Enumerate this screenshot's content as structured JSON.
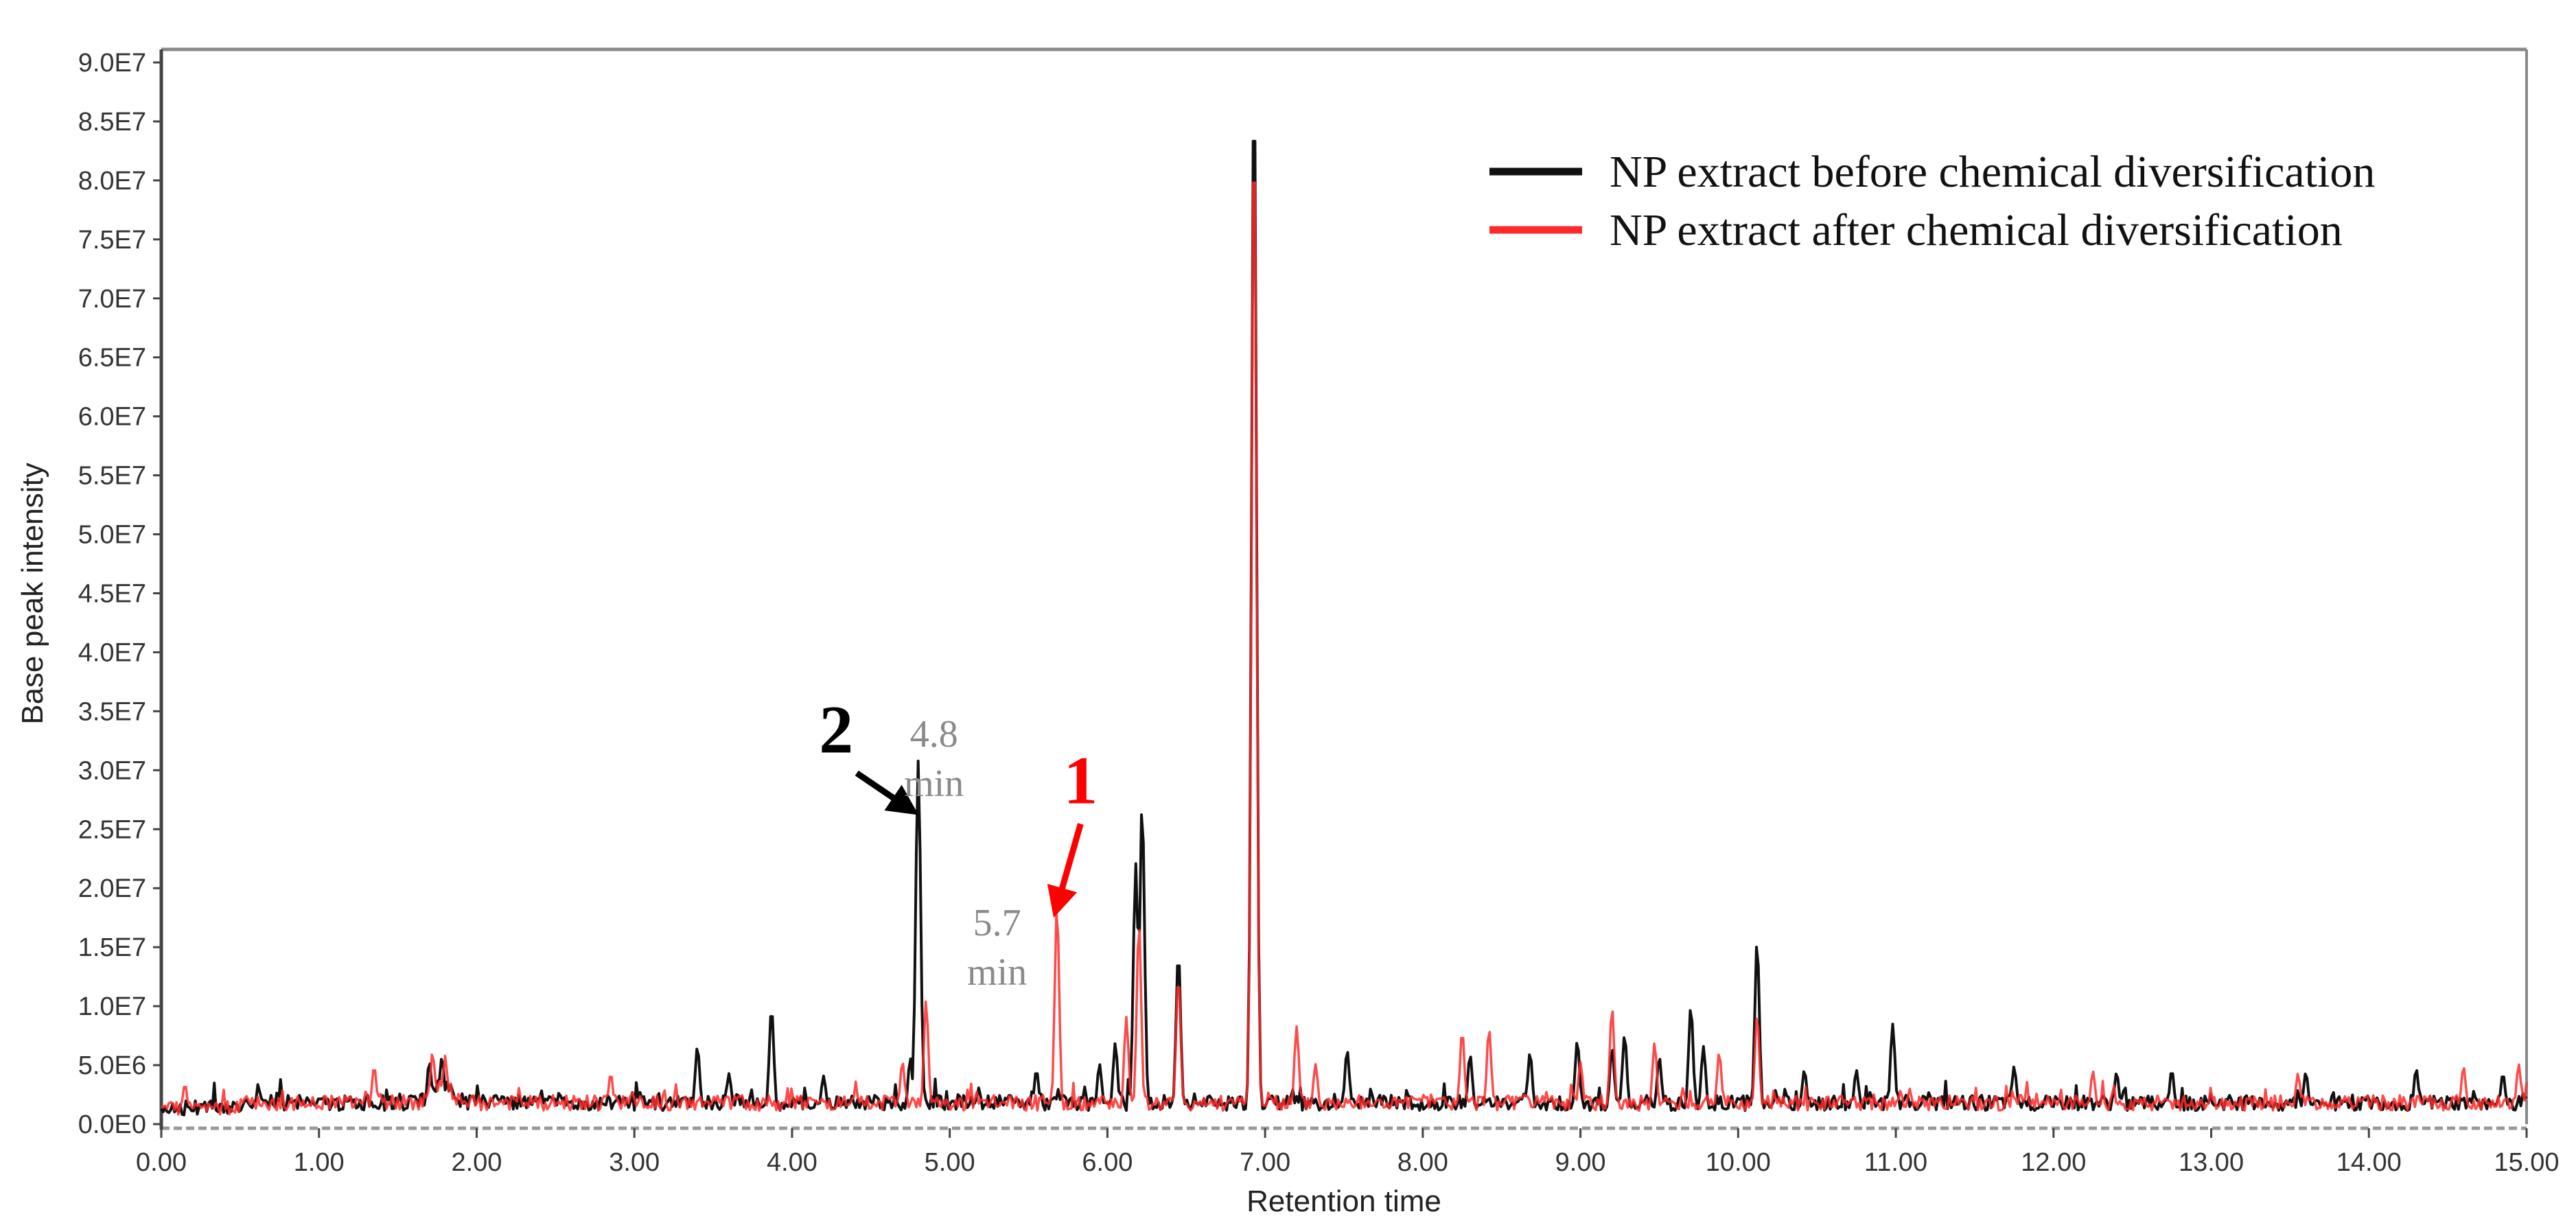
{
  "chart_data": {
    "type": "line",
    "title": "",
    "xlabel": "Retention time",
    "ylabel": "Base peak intensity",
    "xlim": [
      0,
      15
    ],
    "ylim": [
      0,
      90000000
    ],
    "x_ticks": [
      "0.00",
      "1.00",
      "2.00",
      "3.00",
      "4.00",
      "5.00",
      "6.00",
      "7.00",
      "8.00",
      "9.00",
      "10.00",
      "11.00",
      "12.00",
      "13.00",
      "14.00",
      "15.00"
    ],
    "y_ticks": [
      "0.0E0",
      "5.0E6",
      "1.0E7",
      "1.5E7",
      "2.0E7",
      "2.5E7",
      "3.0E7",
      "3.5E7",
      "4.0E7",
      "4.5E7",
      "5.0E7",
      "5.5E7",
      "6.0E7",
      "6.5E7",
      "7.0E7",
      "7.5E7",
      "8.0E7",
      "8.5E7",
      "9.0E7"
    ],
    "grid": false,
    "legend_position": "upper right",
    "baseline_level": 1800000,
    "series": [
      {
        "name": "NP extract before chemical diversification",
        "color": "#111111",
        "peaks": [
          {
            "x": 1.7,
            "y": 4200000
          },
          {
            "x": 1.78,
            "y": 4600000
          },
          {
            "x": 3.4,
            "y": 5500000
          },
          {
            "x": 3.6,
            "y": 3200000
          },
          {
            "x": 3.87,
            "y": 8800000
          },
          {
            "x": 4.2,
            "y": 3000000
          },
          {
            "x": 4.75,
            "y": 4500000
          },
          {
            "x": 4.8,
            "y": 29700000
          },
          {
            "x": 5.55,
            "y": 3500000
          },
          {
            "x": 5.95,
            "y": 4000000
          },
          {
            "x": 6.05,
            "y": 5800000
          },
          {
            "x": 6.18,
            "y": 21000000
          },
          {
            "x": 6.22,
            "y": 26000000
          },
          {
            "x": 6.45,
            "y": 13500000
          },
          {
            "x": 6.93,
            "y": 88600000
          },
          {
            "x": 7.52,
            "y": 5200000
          },
          {
            "x": 8.3,
            "y": 4800000
          },
          {
            "x": 8.68,
            "y": 5000000
          },
          {
            "x": 8.98,
            "y": 6000000
          },
          {
            "x": 9.2,
            "y": 5400000
          },
          {
            "x": 9.28,
            "y": 6500000
          },
          {
            "x": 9.5,
            "y": 4600000
          },
          {
            "x": 9.7,
            "y": 8900000
          },
          {
            "x": 9.78,
            "y": 5500000
          },
          {
            "x": 10.12,
            "y": 14500000
          },
          {
            "x": 10.42,
            "y": 3500000
          },
          {
            "x": 10.75,
            "y": 3500000
          },
          {
            "x": 10.98,
            "y": 7400000
          },
          {
            "x": 11.75,
            "y": 3800000
          },
          {
            "x": 12.4,
            "y": 3300000
          },
          {
            "x": 12.75,
            "y": 3500000
          },
          {
            "x": 13.6,
            "y": 3300000
          },
          {
            "x": 14.3,
            "y": 3600000
          },
          {
            "x": 14.85,
            "y": 3200000
          }
        ]
      },
      {
        "name": "NP extract after chemical diversification",
        "color": "#ff2a2a",
        "peaks": [
          {
            "x": 0.15,
            "y": 2700000
          },
          {
            "x": 1.35,
            "y": 3800000
          },
          {
            "x": 1.72,
            "y": 5000000
          },
          {
            "x": 1.8,
            "y": 4700000
          },
          {
            "x": 2.85,
            "y": 3200000
          },
          {
            "x": 4.7,
            "y": 4200000
          },
          {
            "x": 4.85,
            "y": 9400000
          },
          {
            "x": 5.68,
            "y": 17500000
          },
          {
            "x": 6.12,
            "y": 8000000
          },
          {
            "x": 6.2,
            "y": 16000000
          },
          {
            "x": 6.45,
            "y": 11500000
          },
          {
            "x": 6.93,
            "y": 84800000
          },
          {
            "x": 7.2,
            "y": 7200000
          },
          {
            "x": 7.32,
            "y": 4000000
          },
          {
            "x": 8.25,
            "y": 6800000
          },
          {
            "x": 8.42,
            "y": 7000000
          },
          {
            "x": 9.0,
            "y": 4200000
          },
          {
            "x": 9.2,
            "y": 8800000
          },
          {
            "x": 9.47,
            "y": 5800000
          },
          {
            "x": 9.88,
            "y": 5000000
          },
          {
            "x": 10.12,
            "y": 8200000
          },
          {
            "x": 12.25,
            "y": 3400000
          },
          {
            "x": 13.55,
            "y": 3200000
          },
          {
            "x": 14.6,
            "y": 3800000
          },
          {
            "x": 14.95,
            "y": 4000000
          }
        ]
      }
    ],
    "annotations": [
      {
        "text": "2",
        "color": "#000000",
        "label_x": 4.28,
        "label_y": 31500000,
        "arrow_to_x": 4.77,
        "arrow_to_y": 26500000,
        "time_label": [
          "4.8",
          "min"
        ],
        "time_label_x": 4.9,
        "time_label_y": 32000000
      },
      {
        "text": "1",
        "color": "#ff0000",
        "label_x": 5.83,
        "label_y": 27200000,
        "arrow_to_x": 5.67,
        "arrow_to_y": 18000000,
        "time_label": [
          "5.7",
          "min"
        ],
        "time_label_x": 5.3,
        "time_label_y": 16000000
      }
    ]
  }
}
